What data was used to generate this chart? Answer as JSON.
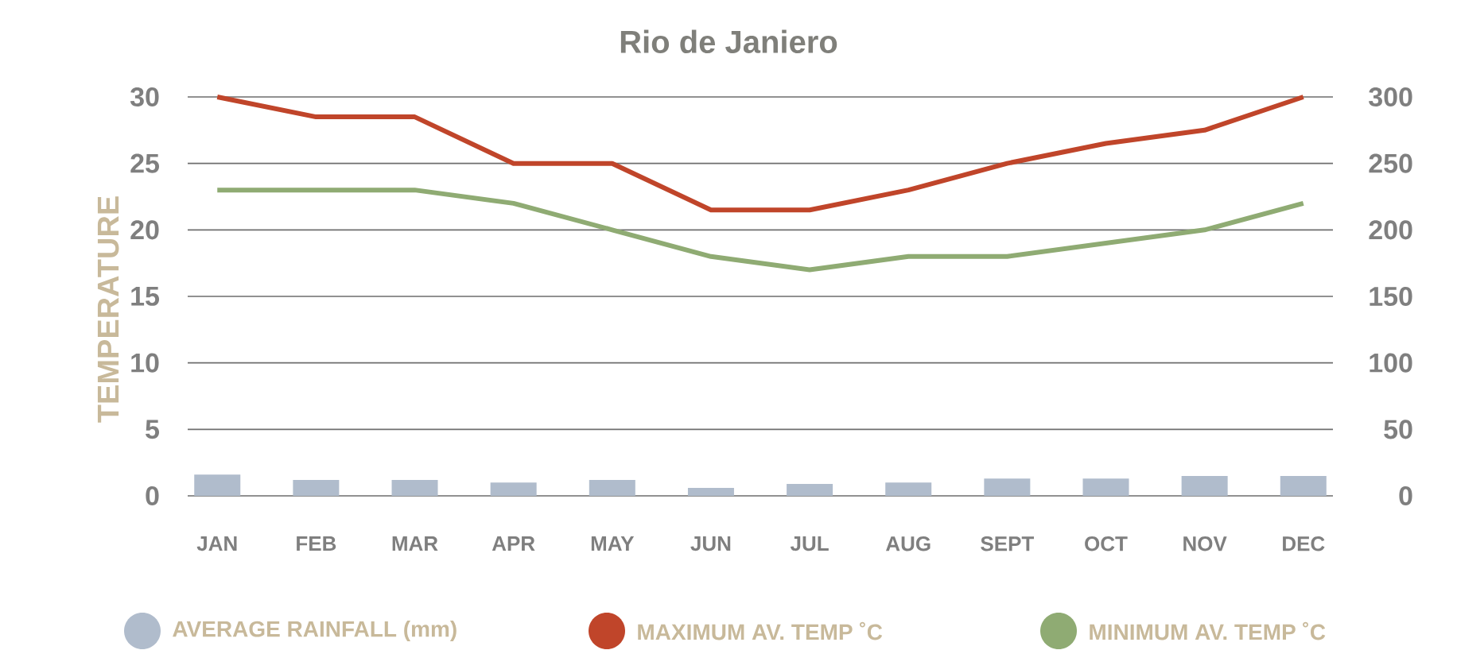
{
  "chart_data": {
    "type": "line",
    "title": "Rio de Janiero",
    "ylabel": "TEMPERATURE",
    "categories": [
      "JAN",
      "FEB",
      "MAR",
      "APR",
      "MAY",
      "JUN",
      "JUL",
      "AUG",
      "SEPT",
      "OCT",
      "NOV",
      "DEC"
    ],
    "series": [
      {
        "name": "AVERAGE RAINFALL (mm)",
        "type": "bar",
        "axis": "y2",
        "color": "#b0bccc",
        "values": [
          16,
          12,
          12,
          10,
          12,
          6,
          9,
          10,
          13,
          13,
          15,
          15
        ]
      },
      {
        "name": "MAXIMUM AV. TEMP ˚C",
        "color": "#c0452a",
        "values": [
          30,
          28.5,
          28.5,
          25,
          25,
          21.5,
          21.5,
          23,
          25,
          26.5,
          27.5,
          30
        ]
      },
      {
        "name": "MINIMUM AV. TEMP ˚C",
        "color": "#8fab73",
        "values": [
          23,
          23,
          23,
          22,
          20,
          18,
          17,
          18,
          18,
          19,
          20,
          22
        ]
      }
    ],
    "ylim": [
      0,
      30
    ],
    "yticks": [
      0,
      5,
      10,
      15,
      20,
      25,
      30
    ],
    "y2lim": [
      0,
      300
    ],
    "y2ticks": [
      0,
      50,
      100,
      150,
      200,
      250,
      300
    ],
    "grid": "y",
    "legend": "bottom"
  }
}
